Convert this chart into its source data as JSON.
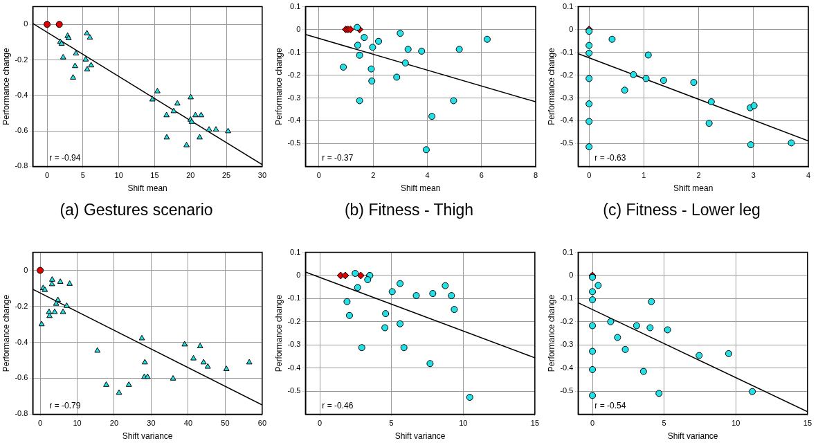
{
  "chart_data": [
    {
      "type": "scatter",
      "title": "(a) Gestures scenario",
      "xlabel": "Shift mean",
      "ylabel": "Performance change",
      "xlim": [
        -2,
        30
      ],
      "xticks": [
        0,
        5,
        10,
        15,
        20,
        25,
        30
      ],
      "ylim": [
        -0.8,
        0.1
      ],
      "yticks": [
        -0.8,
        -0.6,
        -0.4,
        -0.2,
        0
      ],
      "grid": true,
      "annotations": [
        "r = -0.94"
      ],
      "series": [
        {
          "type": "line",
          "color": "#000000",
          "marker": "none",
          "x": [
            -2,
            30
          ],
          "values": [
            0.005,
            -0.79
          ]
        },
        {
          "type": "scatter",
          "color": "#22e0e6",
          "marker": "triangle",
          "x": [
            2.86,
            3.0,
            1.83,
            2.03,
            2.24,
            4.03,
            3.9,
            3.62,
            5.55,
            5.97,
            5.38,
            5.59,
            6.14,
            15.38,
            14.69,
            18.17,
            17.66,
            16.66,
            16.69,
            20.03,
            20.0,
            20.17,
            20.69,
            21.48,
            19.45,
            21.28,
            22.59,
            23.55,
            25.24
          ],
          "values": [
            -0.065,
            -0.078,
            -0.099,
            -0.109,
            -0.186,
            -0.164,
            -0.235,
            -0.3,
            -0.051,
            -0.075,
            -0.198,
            -0.254,
            -0.231,
            -0.377,
            -0.423,
            -0.446,
            -0.489,
            -0.512,
            -0.637,
            -0.411,
            -0.537,
            -0.549,
            -0.512,
            -0.512,
            -0.681,
            -0.637,
            -0.593,
            -0.593,
            -0.602
          ]
        },
        {
          "type": "scatter",
          "color": "#e00000",
          "marker": "circle",
          "x": [
            0,
            1.7
          ],
          "values": [
            0,
            0
          ]
        }
      ]
    },
    {
      "type": "scatter",
      "title": "(b) Fitness - Thigh",
      "xlabel": "Shift mean",
      "ylabel": "Performance change",
      "xlim": [
        -0.5,
        8
      ],
      "xticks": [
        0,
        2,
        4,
        6,
        8
      ],
      "ylim": [
        -0.6,
        0.1
      ],
      "yticks": [
        -0.5,
        -0.4,
        -0.3,
        -0.2,
        -0.1,
        0,
        0.1
      ],
      "grid": true,
      "annotations": [
        "r = -0.37"
      ],
      "series": [
        {
          "type": "line",
          "color": "#000000",
          "marker": "none",
          "x": [
            -0.5,
            8
          ],
          "values": [
            -0.022,
            -0.317
          ]
        },
        {
          "type": "scatter",
          "color": "#22e0e6",
          "marker": "circle",
          "x": [
            1.41,
            1.67,
            1.43,
            1.5,
            0.9,
            2.2,
            1.98,
            1.93,
            1.95,
            1.5,
            3.0,
            3.29,
            3.19,
            2.87,
            3.79,
            4.17,
            3.96,
            4.97,
            5.18,
            6.21
          ],
          "values": [
            0.009,
            -0.035,
            -0.069,
            -0.113,
            -0.165,
            -0.052,
            -0.078,
            -0.173,
            -0.226,
            -0.312,
            -0.017,
            -0.087,
            -0.147,
            -0.209,
            -0.095,
            -0.381,
            -0.527,
            -0.312,
            -0.087,
            -0.043
          ]
        },
        {
          "type": "scatter",
          "color": "#e00000",
          "marker": "diamond",
          "x": [
            0.99,
            1.07,
            1.16,
            1.5
          ],
          "values": [
            0,
            0,
            0,
            0
          ]
        }
      ]
    },
    {
      "type": "scatter",
      "title": "(c) Fitness - Lower leg",
      "xlabel": "Shift mean",
      "ylabel": "Performance change",
      "xlim": [
        -0.2,
        4
      ],
      "xticks": [
        0,
        1,
        2,
        3,
        4
      ],
      "ylim": [
        -0.6,
        0.1
      ],
      "yticks": [
        -0.5,
        -0.4,
        -0.3,
        -0.2,
        -0.1,
        0,
        0.1
      ],
      "grid": true,
      "annotations": [
        "r = -0.63"
      ],
      "series": [
        {
          "type": "line",
          "color": "#000000",
          "marker": "none",
          "x": [
            -0.2,
            4
          ],
          "values": [
            -0.106,
            -0.488
          ]
        },
        {
          "type": "scatter",
          "color": "#22e0e6",
          "marker": "circle",
          "x": [
            0,
            0,
            0,
            0,
            0,
            0,
            0,
            0.42,
            0.65,
            0.81,
            1.04,
            1.08,
            1.36,
            1.91,
            2.23,
            2.19,
            2.94,
            3.01,
            2.95,
            3.69
          ],
          "values": [
            -0.008,
            -0.07,
            -0.104,
            -0.215,
            -0.326,
            -0.403,
            -0.514,
            -0.043,
            -0.266,
            -0.198,
            -0.215,
            -0.112,
            -0.223,
            -0.232,
            -0.317,
            -0.411,
            -0.343,
            -0.334,
            -0.505,
            -0.497
          ]
        },
        {
          "type": "scatter",
          "color": "#e00000",
          "marker": "diamond",
          "x": [
            0
          ],
          "values": [
            0
          ]
        }
      ]
    },
    {
      "type": "scatter",
      "xlabel": "Shift variance",
      "ylabel": "Performance change",
      "xlim": [
        -2,
        60
      ],
      "xticks": [
        0,
        10,
        20,
        30,
        40,
        50,
        60
      ],
      "ylim": [
        -0.8,
        0.1
      ],
      "yticks": [
        -0.8,
        -0.6,
        -0.4,
        -0.2,
        0
      ],
      "grid": true,
      "annotations": [
        "r = -0.79"
      ],
      "series": [
        {
          "type": "line",
          "color": "#000000",
          "marker": "none",
          "x": [
            -2,
            60
          ],
          "values": [
            -0.105,
            -0.749
          ]
        },
        {
          "type": "scatter",
          "color": "#22e0e6",
          "marker": "triangle",
          "x": [
            0.4,
            0.8,
            1.26,
            3.25,
            3.19,
            5.44,
            7.97,
            4.78,
            4.32,
            2.39,
            2.52,
            3.92,
            6.18,
            7.17,
            15.47,
            17.86,
            21.31,
            23.97,
            27.49,
            28.29,
            28.15,
            29.02,
            35.92,
            39.04,
            41.43,
            43.23,
            44.16,
            45.29,
            50.33,
            56.5
          ],
          "values": [
            -0.3,
            -0.099,
            -0.109,
            -0.052,
            -0.077,
            -0.064,
            -0.075,
            -0.165,
            -0.186,
            -0.232,
            -0.254,
            -0.232,
            -0.232,
            -0.198,
            -0.447,
            -0.637,
            -0.681,
            -0.637,
            -0.378,
            -0.512,
            -0.593,
            -0.593,
            -0.602,
            -0.412,
            -0.49,
            -0.422,
            -0.512,
            -0.536,
            -0.549,
            -0.512
          ]
        },
        {
          "type": "scatter",
          "color": "#e00000",
          "marker": "circle",
          "x": [
            0
          ],
          "values": [
            0
          ]
        }
      ]
    },
    {
      "type": "scatter",
      "xlabel": "Shift variance",
      "ylabel": "Performance change",
      "xlim": [
        -1,
        15
      ],
      "xticks": [
        0,
        5,
        10,
        15
      ],
      "ylim": [
        -0.6,
        0.1
      ],
      "yticks": [
        -0.5,
        -0.4,
        -0.3,
        -0.2,
        -0.1,
        0,
        0.1
      ],
      "grid": true,
      "annotations": [
        "r = -0.46"
      ],
      "series": [
        {
          "type": "line",
          "color": "#000000",
          "marker": "none",
          "x": [
            -1,
            15
          ],
          "values": [
            0.015,
            -0.356
          ]
        },
        {
          "type": "scatter",
          "color": "#22e0e6",
          "marker": "circle",
          "x": [
            3.49,
            2.47,
            3.34,
            2.64,
            1.9,
            2.07,
            2.93,
            5.05,
            5.6,
            4.59,
            4.54,
            5.6,
            5.87,
            6.73,
            7.88,
            8.75,
            9.18,
            9.38,
            7.69,
            10.46
          ],
          "values": [
            0,
            0.009,
            -0.018,
            -0.052,
            -0.113,
            -0.173,
            -0.312,
            -0.07,
            -0.035,
            -0.165,
            -0.226,
            -0.209,
            -0.312,
            -0.087,
            -0.078,
            -0.044,
            -0.087,
            -0.147,
            -0.381,
            -0.527
          ]
        },
        {
          "type": "scatter",
          "color": "#e00000",
          "marker": "diamond",
          "x": [
            1.46,
            1.78,
            2.86,
            3.45
          ],
          "values": [
            0,
            0,
            0,
            0
          ]
        }
      ]
    },
    {
      "type": "scatter",
      "xlabel": "Shift variance",
      "ylabel": "Performance change",
      "xlim": [
        -1,
        15
      ],
      "xticks": [
        0,
        5,
        10,
        15
      ],
      "ylim": [
        -0.6,
        0.1
      ],
      "yticks": [
        -0.5,
        -0.4,
        -0.3,
        -0.2,
        -0.1,
        0,
        0.1
      ],
      "grid": true,
      "annotations": [
        "r = -0.54"
      ],
      "series": [
        {
          "type": "line",
          "color": "#000000",
          "marker": "none",
          "x": [
            -1,
            15
          ],
          "values": [
            -0.118,
            -0.589
          ]
        },
        {
          "type": "scatter",
          "color": "#22e0e6",
          "marker": "circle",
          "x": [
            0,
            0,
            0,
            0,
            0,
            0,
            0,
            0.4,
            1.27,
            1.75,
            2.29,
            3.08,
            3.56,
            4.02,
            4.11,
            4.64,
            5.24,
            7.44,
            9.5,
            11.15
          ],
          "values": [
            -0.008,
            -0.07,
            -0.105,
            -0.217,
            -0.328,
            -0.407,
            -0.519,
            -0.043,
            -0.2,
            -0.268,
            -0.32,
            -0.217,
            -0.415,
            -0.226,
            -0.113,
            -0.51,
            -0.235,
            -0.346,
            -0.338,
            -0.502
          ]
        },
        {
          "type": "scatter",
          "color": "#e00000",
          "marker": "diamond",
          "x": [
            0
          ],
          "values": [
            0
          ]
        }
      ]
    }
  ]
}
